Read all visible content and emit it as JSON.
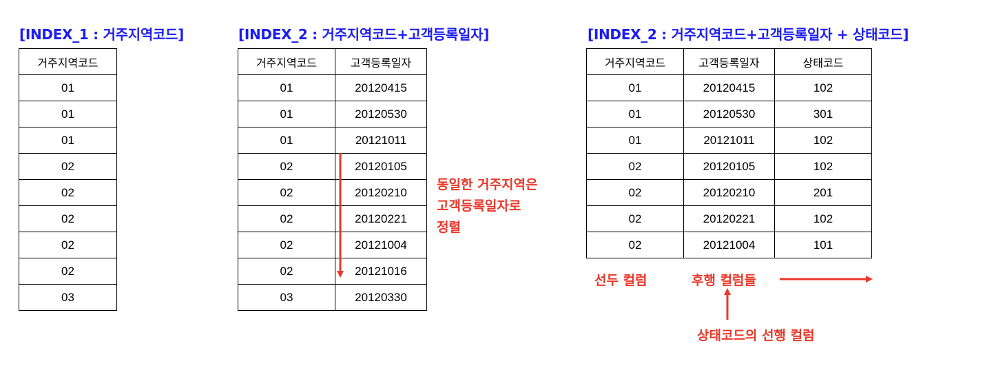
{
  "index1": {
    "title": "[INDEX_1 : 거주지역코드]",
    "headers": [
      "거주지역코드"
    ],
    "rows": [
      [
        "01"
      ],
      [
        "01"
      ],
      [
        "01"
      ],
      [
        "02"
      ],
      [
        "02"
      ],
      [
        "02"
      ],
      [
        "02"
      ],
      [
        "02"
      ],
      [
        "03"
      ]
    ]
  },
  "index2": {
    "title": "[INDEX_2 : 거주지역코드+고객등록일자]",
    "headers": [
      "거주지역코드",
      "고객등록일자"
    ],
    "rows": [
      [
        "01",
        "20120415"
      ],
      [
        "01",
        "20120530"
      ],
      [
        "01",
        "20121011"
      ],
      [
        "02",
        "20120105"
      ],
      [
        "02",
        "20120210"
      ],
      [
        "02",
        "20120221"
      ],
      [
        "02",
        "20121004"
      ],
      [
        "02",
        "20121016"
      ],
      [
        "03",
        "20120330"
      ]
    ],
    "note_lines": [
      "동일한 거주지역은",
      "고객등록일자로",
      "정렬"
    ]
  },
  "index3": {
    "title": "[INDEX_2 : 거주지역코드+고객등록일자 + 상태코드]",
    "headers": [
      "거주지역코드",
      "고객등록일자",
      "상태코드"
    ],
    "rows": [
      [
        "01",
        "20120415",
        "102"
      ],
      [
        "01",
        "20120530",
        "301"
      ],
      [
        "01",
        "20121011",
        "102"
      ],
      [
        "02",
        "20120105",
        "102"
      ],
      [
        "02",
        "20120210",
        "201"
      ],
      [
        "02",
        "20120221",
        "102"
      ],
      [
        "02",
        "20121004",
        "101"
      ]
    ],
    "leading_label": "선두 컬럼",
    "trailing_label": "후행 컬럼들",
    "status_label": "상태코드의 선행 컬럼"
  },
  "colors": {
    "title": "#1c1cf0",
    "annotation": "#e8382a"
  }
}
